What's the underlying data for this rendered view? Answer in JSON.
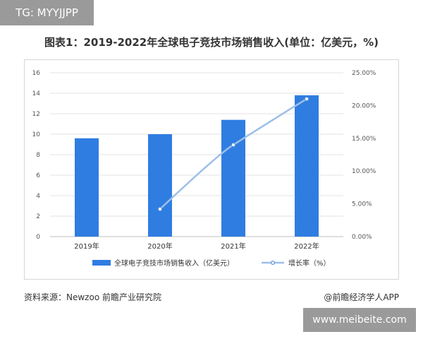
{
  "watermark_top": "TG: MYYJJPP",
  "watermark_bottom": "www.meibeite.com",
  "footer": {
    "source": "资料来源：Newzoo 前瞻产业研究院",
    "credit": "@前瞻经济学人APP"
  },
  "colors": {
    "bar": "#2f7de1",
    "line": "#9dbfe8",
    "marker": "#5b95d9",
    "grid": "#e3e3e3"
  },
  "chart_data": {
    "type": "bar",
    "title": "图表1：2019-2022年全球电子竞技市场销售收入(单位：亿美元，%)",
    "categories": [
      "2019年",
      "2020年",
      "2021年",
      "2022年"
    ],
    "series": [
      {
        "name": "全球电子竞技市场销售收入（亿美元）",
        "type": "bar",
        "axis": "left",
        "values": [
          9.6,
          10.0,
          11.4,
          13.8
        ]
      },
      {
        "name": "增长率（%）",
        "type": "line",
        "axis": "right",
        "values": [
          null,
          4.2,
          14.0,
          21.0
        ]
      }
    ],
    "yleft": {
      "min": 0,
      "max": 16,
      "ticks": [
        0,
        2,
        4,
        6,
        8,
        10,
        12,
        14,
        16
      ]
    },
    "yright": {
      "min": 0,
      "max": 25,
      "ticks": [
        0,
        5,
        10,
        15,
        20,
        25
      ],
      "tick_labels": [
        "0.00%",
        "5.00%",
        "10.00%",
        "15.00%",
        "20.00%",
        "25.00%"
      ]
    },
    "grid": true,
    "legend": "bottom-center"
  }
}
